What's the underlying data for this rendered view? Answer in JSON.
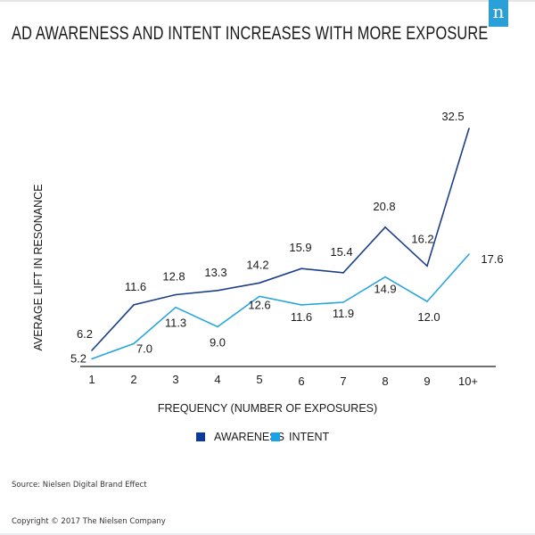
{
  "header": {
    "title": "AD AWARENESS AND INTENT INCREASES WITH MORE EXPOSURE",
    "logo_glyph": "n"
  },
  "colors": {
    "awareness": "#1c3f8a",
    "awareness_legend": "#0d3a9a",
    "intent": "#29a6de",
    "intent_legend": "#1aa3e8",
    "logo": "#2a9fd8"
  },
  "chart_data": {
    "type": "line",
    "title": "AD AWARENESS AND INTENT INCREASES WITH MORE EXPOSURE",
    "xlabel": "FREQUENCY (NUMBER OF EXPOSURES)",
    "ylabel": "AVERAGE LIFT IN RESONANCE",
    "categories": [
      "1",
      "2",
      "3",
      "4",
      "5",
      "6",
      "7",
      "8",
      "9",
      "10+"
    ],
    "series": [
      {
        "name": "AWARENESS",
        "values": [
          6.2,
          11.6,
          12.8,
          13.3,
          14.2,
          15.9,
          15.4,
          20.8,
          16.2,
          32.5
        ],
        "labels": [
          "6.2",
          "11.6",
          "12.8",
          "13.3",
          "14.2",
          "15.9",
          "15.4",
          "20.8",
          "16.2",
          "32.5"
        ]
      },
      {
        "name": "INTENT",
        "values": [
          5.2,
          7.0,
          11.3,
          9.0,
          12.6,
          11.6,
          11.9,
          14.9,
          12.0,
          17.6
        ],
        "labels": [
          "5.2",
          "7.0",
          "11.3",
          "9.0",
          "12.6",
          "11.6",
          "11.9",
          "14.9",
          "12.0",
          "17.6"
        ]
      }
    ],
    "ylim": [
      4.3,
      32.5
    ],
    "grid": false,
    "y_ticks_shown": false,
    "legend_position": "bottom-center"
  },
  "footer": {
    "source": "Source: Nielsen Digital Brand Effect",
    "copyright": "Copyright © 2017 The Nielsen Company"
  }
}
